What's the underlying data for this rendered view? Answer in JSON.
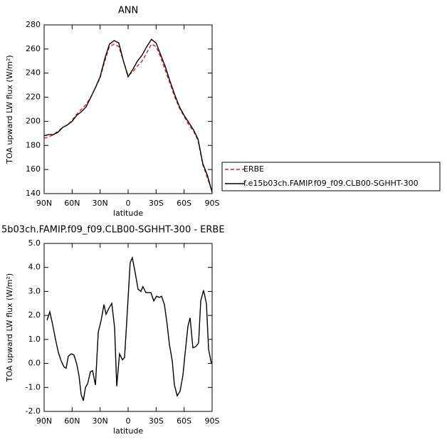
{
  "chart_data": [
    {
      "type": "line",
      "title": "ANN",
      "ylabel": "TOA upward LW flux (W/m²)",
      "xlabel": "latitude",
      "x": [
        90,
        85,
        80,
        75,
        70,
        65,
        60,
        55,
        50,
        45,
        40,
        35,
        30,
        25,
        20,
        15,
        10,
        5,
        0,
        -5,
        -10,
        -15,
        -20,
        -25,
        -30,
        -35,
        -40,
        -45,
        -50,
        -55,
        -60,
        -65,
        -70,
        -75,
        -80,
        -85,
        -90
      ],
      "series": [
        {
          "name": "ERBE",
          "color": "#d62020",
          "style": "dashed",
          "values": [
            186,
            187,
            189,
            192,
            195,
            197,
            201,
            206,
            210,
            214,
            220,
            228,
            236,
            250,
            262,
            264,
            262,
            250,
            238,
            241,
            246,
            250,
            257,
            264,
            262,
            253,
            242,
            231,
            220,
            211,
            204,
            197,
            192,
            184,
            164,
            153,
            142
          ]
        },
        {
          "name": "f.e15b03ch.FAMIP.f09_f09.CLB00-SGHHT-300",
          "color": "#000000",
          "style": "solid",
          "values": [
            188,
            189,
            189,
            191,
            195,
            197,
            200,
            205,
            208,
            212,
            220,
            228,
            237,
            252,
            264,
            267,
            265,
            250,
            237,
            243,
            250,
            255,
            262,
            268,
            265,
            255,
            245,
            233,
            222,
            212,
            205,
            199,
            193,
            185,
            165,
            155,
            141
          ]
        }
      ],
      "xlim": [
        90,
        -90
      ],
      "xticks": [
        {
          "value": 90,
          "label": "90N"
        },
        {
          "value": 60,
          "label": "60N"
        },
        {
          "value": 30,
          "label": "30N"
        },
        0,
        {
          "value": -30,
          "label": "30S"
        },
        {
          "value": -60,
          "label": "60S"
        },
        {
          "value": -90,
          "label": "90S"
        }
      ],
      "ylim": [
        140,
        280
      ],
      "yticks": [
        140,
        160,
        180,
        200,
        220,
        240,
        260,
        280
      ],
      "legend": "outside right"
    },
    {
      "type": "line",
      "title": "5b03ch.FAMIP.f09_f09.CLB00-SGHHT-300 - ERBE",
      "ylabel": "TOA upward LW flux (W/m²)",
      "xlabel": "latitude",
      "x": [
        86.9,
        83.9,
        80.8,
        77.8,
        74.7,
        71.7,
        68.6,
        66.4,
        64.1,
        61.0,
        58.0,
        54.9,
        52.7,
        50.3,
        48.0,
        45.7,
        43.4,
        40.4,
        38.1,
        35.0,
        32.0,
        28.9,
        25.9,
        23.6,
        20.6,
        17.5,
        14.5,
        12.2,
        9.2,
        6.1,
        3.8,
        0.8,
        -2.2,
        -4.5,
        -7.5,
        -10.6,
        -13.6,
        -15.9,
        -19.0,
        -22.1,
        -24.4,
        -27.5,
        -30.5,
        -33.6,
        -35.8,
        -38.9,
        -41.9,
        -44.2,
        -47.3,
        -49.6,
        -52.6,
        -55.7,
        -58.7,
        -61.0,
        -64.1,
        -66.4,
        -69.4,
        -72.5,
        -75.5,
        -77.8,
        -80.8,
        -83.9,
        -86.2,
        -89.2
      ],
      "values": [
        1.8,
        2.15,
        1.6,
        1.0,
        0.45,
        0.1,
        -0.15,
        -0.2,
        0.3,
        0.4,
        0.35,
        -0.05,
        -0.5,
        -1.3,
        -1.55,
        -1.0,
        -0.85,
        -0.35,
        -0.3,
        -0.9,
        1.3,
        1.8,
        2.45,
        2.05,
        2.3,
        2.5,
        1.5,
        -0.95,
        0.4,
        0.15,
        0.25,
        2.2,
        4.2,
        4.4,
        3.8,
        3.1,
        3.0,
        3.2,
        2.95,
        2.95,
        2.95,
        2.6,
        2.8,
        2.75,
        2.8,
        2.45,
        1.6,
        0.8,
        0.1,
        -0.9,
        -1.35,
        -1.15,
        -0.5,
        0.4,
        1.55,
        1.9,
        0.65,
        0.7,
        0.85,
        2.6,
        3.05,
        2.5,
        0.6,
        0.0
      ],
      "color": "#000000",
      "xlim": [
        90,
        -90
      ],
      "xticks": [
        {
          "value": 90,
          "label": "90N"
        },
        {
          "value": 60,
          "label": "60N"
        },
        {
          "value": 30,
          "label": "30N"
        },
        0,
        {
          "value": -30,
          "label": "30S"
        },
        {
          "value": -60,
          "label": "60S"
        },
        {
          "value": -90,
          "label": "90S"
        }
      ],
      "ylim": [
        -2,
        5
      ],
      "yticks": [
        {
          "value": -2,
          "label": "-2.0"
        },
        {
          "value": -1,
          "label": "-1.0"
        },
        {
          "value": 0,
          "label": "0.0"
        },
        {
          "value": 1,
          "label": "1.0"
        },
        {
          "value": 2,
          "label": "2.0"
        },
        {
          "value": 3,
          "label": "3.0"
        },
        {
          "value": 4,
          "label": "4.0"
        },
        {
          "value": 5,
          "label": "5.0"
        }
      ]
    }
  ]
}
